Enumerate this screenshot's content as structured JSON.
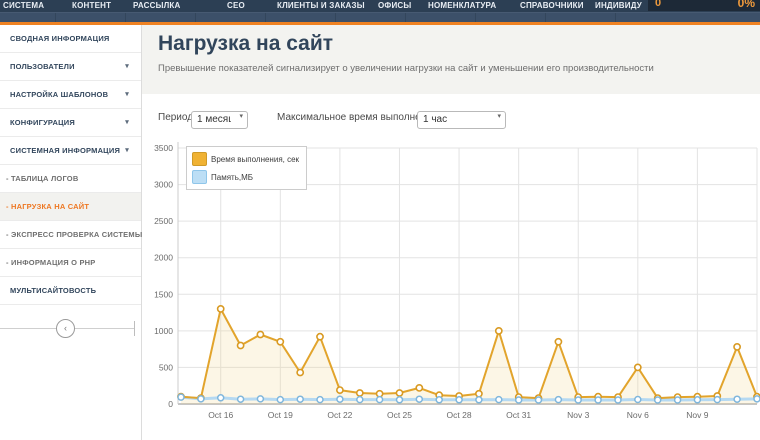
{
  "nav": {
    "items": [
      {
        "id": "system",
        "label": "СИСТЕМА"
      },
      {
        "id": "content",
        "label": "КОНТЕНТ"
      },
      {
        "id": "mailing",
        "label": "РАССЫЛКА"
      },
      {
        "id": "seo",
        "label": "СЕО"
      },
      {
        "id": "clients-orders",
        "label": "КЛИЕНТЫ И ЗАКАЗЫ"
      },
      {
        "id": "offices",
        "label": "ОФИСЫ"
      },
      {
        "id": "nomenclature",
        "label": "НОМЕНКЛАТУРА"
      },
      {
        "id": "directories",
        "label": "СПРАВОЧНИКИ"
      },
      {
        "id": "individual",
        "label": "ИНДИВИДУ"
      }
    ],
    "usage_value": "0",
    "usage_percent": "0%"
  },
  "sidebar": {
    "items": [
      {
        "id": "summary-info",
        "label": "СВОДНАЯ ИНФОРМАЦИЯ",
        "sub": false,
        "expandable": false,
        "active": false,
        "marker": ""
      },
      {
        "id": "users",
        "label": "ПОЛЬЗОВАТЕЛИ",
        "sub": false,
        "expandable": true,
        "active": false,
        "marker": ""
      },
      {
        "id": "template-settings",
        "label": "НАСТРОЙКА ШАБЛОНОВ",
        "sub": false,
        "expandable": true,
        "active": false,
        "marker": ""
      },
      {
        "id": "configuration",
        "label": "КОНФИГУРАЦИЯ",
        "sub": false,
        "expandable": true,
        "active": false,
        "marker": ""
      },
      {
        "id": "system-info",
        "label": "СИСТЕМНАЯ ИНФОРМАЦИЯ",
        "sub": false,
        "expandable": true,
        "active": false,
        "marker": ""
      },
      {
        "id": "log-table",
        "label": "ТАБЛИЦА ЛОГОВ",
        "sub": true,
        "expandable": false,
        "active": false,
        "marker": "-"
      },
      {
        "id": "site-load",
        "label": "НАГРУЗКА НА САЙТ",
        "sub": true,
        "expandable": false,
        "active": true,
        "marker": "-"
      },
      {
        "id": "express-check",
        "label": "ЭКСПРЕСС ПРОВЕРКА СИСТЕМЫ",
        "sub": true,
        "expandable": false,
        "active": false,
        "marker": "-"
      },
      {
        "id": "php-info",
        "label": "ИНФОРМАЦИЯ О PHP",
        "sub": true,
        "expandable": false,
        "active": false,
        "marker": "-"
      },
      {
        "id": "multisite",
        "label": "МУЛЬТИСАЙТОВОСТЬ",
        "sub": false,
        "expandable": false,
        "active": false,
        "marker": ""
      }
    ]
  },
  "page": {
    "title": "Нагрузка на сайт",
    "subtitle": "Превышение показателей сигнализирует о увеличении нагрузки на сайт и уменьшении его производительности"
  },
  "controls": {
    "period_label": "Период",
    "period_value": "1 месяц",
    "max_time_label": "Максимальное время выполнения",
    "max_time_value": "1 час"
  },
  "colors": {
    "accent_orange": "#ef8222",
    "nav_bg": "#2c3f54",
    "series_orange": "#e2a42c",
    "series_blue": "#b5d9f2"
  },
  "chart_data": {
    "type": "line",
    "title": "",
    "xlabel": "",
    "ylabel": "",
    "grid": true,
    "legend_position": "top-left",
    "ylim": [
      0,
      3500
    ],
    "yticks": [
      0,
      500,
      1000,
      1500,
      2000,
      2500,
      3000,
      3500
    ],
    "x_tick_labels": [
      "Oct 16",
      "Oct 19",
      "Oct 22",
      "Oct 25",
      "Oct 28",
      "Oct 31",
      "Nov 3",
      "Nov 6",
      "Nov 9"
    ],
    "x_tick_first_index": 2,
    "x_tick_step": 3,
    "dates": [
      "Oct 14",
      "Oct 15",
      "Oct 16",
      "Oct 17",
      "Oct 18",
      "Oct 19",
      "Oct 20",
      "Oct 21",
      "Oct 22",
      "Oct 23",
      "Oct 24",
      "Oct 25",
      "Oct 26",
      "Oct 27",
      "Oct 28",
      "Oct 29",
      "Oct 30",
      "Oct 31",
      "Nov 1",
      "Nov 2",
      "Nov 3",
      "Nov 4",
      "Nov 5",
      "Nov 6",
      "Nov 7",
      "Nov 8",
      "Nov 9",
      "Nov 10",
      "Nov 11",
      "Nov 12"
    ],
    "series": [
      {
        "name": "Время выполнения, сек",
        "color": "#e2a42c",
        "point_stroke": "#d99a22",
        "fill": "rgba(240,214,140,0.22)",
        "swatch_fill": "#f0b233",
        "swatch_border": "#cf9a28",
        "values": [
          100,
          80,
          1300,
          800,
          950,
          850,
          430,
          920,
          190,
          150,
          140,
          150,
          220,
          120,
          110,
          140,
          1000,
          95,
          80,
          850,
          95,
          100,
          95,
          500,
          80,
          95,
          100,
          110,
          780,
          100
        ]
      },
      {
        "name": "Память,МБ",
        "color": "#b5d9f2",
        "point_stroke": "#7fb6dc",
        "fill": "rgba(181,217,242,0.25)",
        "swatch_fill": "#bcdef5",
        "swatch_border": "#8fc6ea",
        "values": [
          95,
          70,
          85,
          65,
          70,
          60,
          65,
          60,
          65,
          60,
          60,
          58,
          65,
          58,
          58,
          58,
          60,
          55,
          55,
          60,
          55,
          55,
          55,
          62,
          55,
          55,
          58,
          60,
          65,
          70
        ]
      }
    ]
  }
}
